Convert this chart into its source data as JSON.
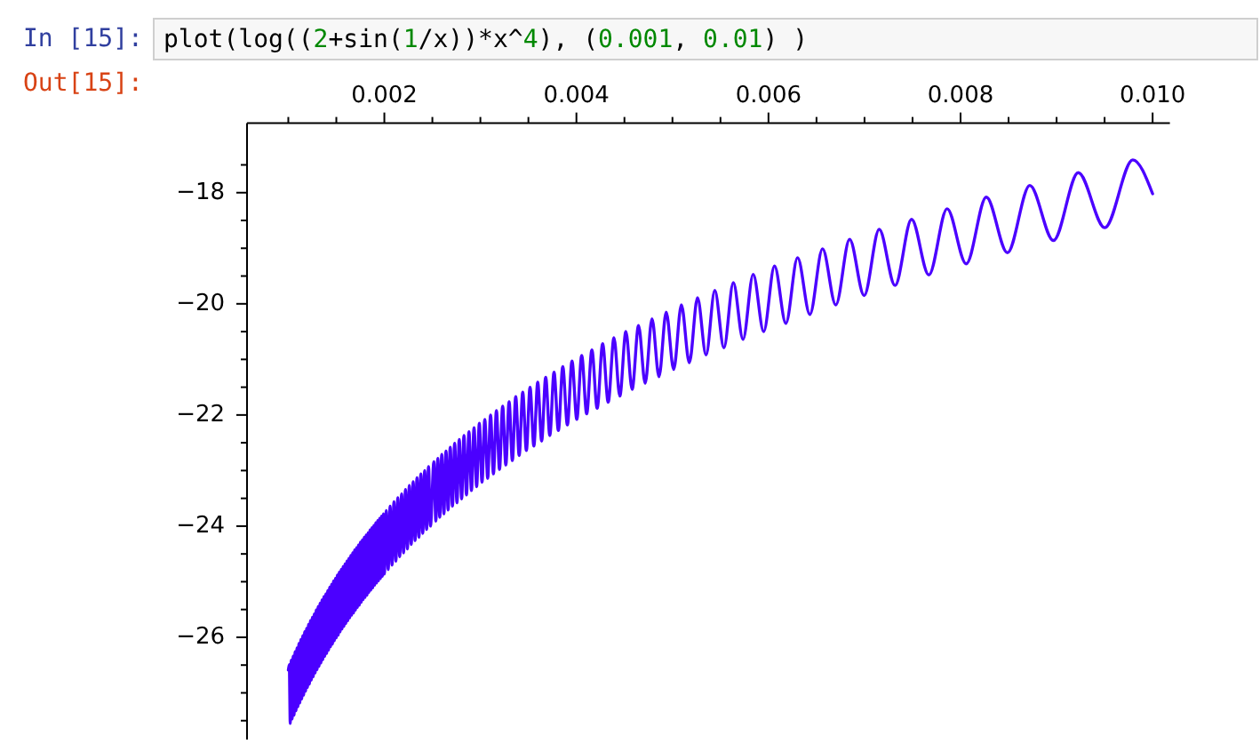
{
  "chart_data": {
    "type": "line",
    "color": "#4b00ff",
    "annotations": [
      "In [15]:",
      "plot(log((2+sin(1/x))*x^4), (0.001, 0.01) )",
      "Out[15]:"
    ],
    "xlim": [
      0.00057,
      0.01018
    ],
    "ylim": [
      -27.84,
      -16.75
    ],
    "xticks": [
      {
        "value": 0.001,
        "label": null
      },
      {
        "value": 0.0015,
        "label": null
      },
      0.002,
      {
        "value": 0.0025,
        "label": null
      },
      {
        "value": 0.003,
        "label": null
      },
      {
        "value": 0.0035,
        "label": null
      },
      0.004,
      {
        "value": 0.0045,
        "label": null
      },
      {
        "value": 0.005,
        "label": null
      },
      {
        "value": 0.0055,
        "label": null
      },
      0.006,
      {
        "value": 0.0065,
        "label": null
      },
      {
        "value": 0.007,
        "label": null
      },
      {
        "value": 0.0075,
        "label": null
      },
      0.008,
      {
        "value": 0.0085,
        "label": null
      },
      {
        "value": 0.009,
        "label": null
      },
      {
        "value": 0.0095,
        "label": null
      },
      {
        "value": 0.01,
        "label": "0.010"
      }
    ],
    "yticks": [
      {
        "value": -27.5,
        "label": null
      },
      {
        "value": -27,
        "label": null
      },
      {
        "value": -26.5,
        "label": null
      },
      {
        "value": -26,
        "label": "−26"
      },
      {
        "value": -25.5,
        "label": null
      },
      {
        "value": -25,
        "label": null
      },
      {
        "value": -24.5,
        "label": null
      },
      {
        "value": -24,
        "label": "−24"
      },
      {
        "value": -23.5,
        "label": null
      },
      {
        "value": -23,
        "label": null
      },
      {
        "value": -22.5,
        "label": null
      },
      {
        "value": -22,
        "label": "−22"
      },
      {
        "value": -21.5,
        "label": null
      },
      {
        "value": -21,
        "label": null
      },
      {
        "value": -20.5,
        "label": null
      },
      {
        "value": -20,
        "label": "−20"
      },
      {
        "value": -19.5,
        "label": null
      },
      {
        "value": -19,
        "label": null
      },
      {
        "value": -18.5,
        "label": null
      },
      {
        "value": -18,
        "label": "−18"
      },
      {
        "value": -17.5,
        "label": null
      }
    ],
    "x": [
      0.001,
      0.00101,
      0.00102,
      0.00103,
      0.00104,
      0.00105,
      0.00106,
      0.00107,
      0.00108,
      0.00109,
      0.0011,
      0.00111,
      0.00112,
      0.00113,
      0.00114,
      0.00115,
      0.00116,
      0.00117,
      0.00118,
      0.00119,
      0.0012,
      0.00121,
      0.00122,
      0.00123,
      0.00124,
      0.00125,
      0.00126,
      0.00127,
      0.00128,
      0.00129,
      0.0013,
      0.00131,
      0.00132,
      0.00133,
      0.00134,
      0.00135,
      0.00136,
      0.00137,
      0.00138,
      0.00139,
      0.0014,
      0.00141,
      0.00142,
      0.00143,
      0.00144,
      0.00145,
      0.00146,
      0.00147,
      0.00148,
      0.00149,
      0.0015,
      0.00151,
      0.00152,
      0.00153,
      0.00154,
      0.00155,
      0.00156,
      0.00157,
      0.00158,
      0.00159,
      0.0016,
      0.00161,
      0.00162,
      0.00163,
      0.00164,
      0.00165,
      0.00166,
      0.00167,
      0.00168,
      0.00169,
      0.0017,
      0.00171,
      0.00172,
      0.00173,
      0.00174,
      0.00175,
      0.00176,
      0.00177,
      0.00178,
      0.00179,
      0.0018,
      0.00181,
      0.00182,
      0.00183,
      0.00184,
      0.00185,
      0.00186,
      0.00187,
      0.00188,
      0.00189,
      0.0019,
      0.00191,
      0.00192,
      0.00193,
      0.00194,
      0.00195,
      0.00196,
      0.00197,
      0.00198,
      0.00199,
      0.002,
      0.00202,
      0.00204,
      0.00206,
      0.00208,
      0.0021,
      0.00212,
      0.00214,
      0.00216,
      0.00218,
      0.0022,
      0.00222,
      0.00224,
      0.00226,
      0.00228,
      0.0023,
      0.00232,
      0.00234,
      0.00236,
      0.00238,
      0.0024,
      0.00242,
      0.00244,
      0.00246,
      0.00248,
      0.002516,
      0.002536,
      0.002557,
      0.002577,
      0.002598,
      0.00262,
      0.002642,
      0.002664,
      0.002686,
      0.002709,
      0.002732,
      0.002756,
      0.00278,
      0.002805,
      0.002829,
      0.002855,
      0.002881,
      0.002907,
      0.002934,
      0.002961,
      0.002989,
      0.003017,
      0.003046,
      0.003076,
      0.003106,
      0.003136,
      0.003167,
      0.003199,
      0.003232,
      0.003265,
      0.003299,
      0.003333,
      0.003368,
      0.003404,
      0.003441,
      0.003479,
      0.003517,
      0.003557,
      0.003597,
      0.003638,
      0.00368,
      0.003723,
      0.003767,
      0.003812,
      0.003858,
      0.003906,
      0.003954,
      0.004004,
      0.004055,
      0.004107,
      0.004161,
      0.004216,
      0.004273,
      0.004331,
      0.004391,
      0.004452,
      0.004515,
      0.00458,
      0.004647,
      0.004716,
      0.004787,
      0.00486,
      0.004935,
      0.005013,
      0.005093,
      0.005176,
      0.005261,
      0.00535,
      0.005441,
      0.005536,
      0.005634,
      0.005735,
      0.005841,
      0.00595,
      0.006063,
      0.006181,
      0.006303,
      0.006431,
      0.006563,
      0.006701,
      0.006845,
      0.006996,
      0.007153,
      0.007318,
      0.00749,
      0.00767,
      0.00786,
      0.008059,
      0.008268,
      0.008488,
      0.008721,
      0.008967,
      0.009226,
      0.009502,
      0.009794,
      0.01
    ],
    "values": [
      -26.59,
      -26.49,
      -27.55,
      -26.41,
      -27.47,
      -26.34,
      -27.4,
      -26.26,
      -27.32,
      -26.19,
      -27.25,
      -26.11,
      -27.18,
      -26.04,
      -27.11,
      -25.97,
      -27.04,
      -25.9,
      -26.97,
      -25.84,
      -26.9,
      -25.77,
      -26.84,
      -25.7,
      -26.77,
      -25.64,
      -26.71,
      -25.58,
      -26.64,
      -25.51,
      -26.58,
      -25.45,
      -26.52,
      -25.39,
      -26.46,
      -25.33,
      -26.4,
      -25.27,
      -26.34,
      -25.22,
      -26.29,
      -25.16,
      -26.23,
      -25.1,
      -26.17,
      -25.05,
      -26.12,
      -24.99,
      -26.06,
      -24.94,
      -26.01,
      -24.88,
      -25.96,
      -24.83,
      -25.9,
      -24.78,
      -25.85,
      -24.73,
      -25.8,
      -24.68,
      -25.75,
      -24.63,
      -25.7,
      -24.58,
      -25.65,
      -24.53,
      -25.6,
      -24.48,
      -25.56,
      -24.43,
      -25.51,
      -24.39,
      -25.46,
      -24.34,
      -25.42,
      -24.29,
      -25.37,
      -24.25,
      -25.32,
      -24.2,
      -25.28,
      -24.16,
      -25.24,
      -24.12,
      -25.19,
      -24.07,
      -25.15,
      -24.03,
      -25.11,
      -23.99,
      -25.06,
      -23.94,
      -25.02,
      -23.9,
      -24.98,
      -23.86,
      -24.94,
      -23.82,
      -24.9,
      -23.78,
      -24.86,
      -23.72,
      -24.78,
      -23.64,
      -24.7,
      -23.56,
      -24.63,
      -23.49,
      -24.55,
      -23.42,
      -24.48,
      -23.34,
      -24.41,
      -23.27,
      -24.33,
      -23.2,
      -24.26,
      -23.13,
      -24.2,
      -23.06,
      -24.13,
      -23.0,
      -24.06,
      -22.93,
      -24.0,
      -22.84,
      -23.91,
      -22.78,
      -23.84,
      -22.71,
      -23.78,
      -22.65,
      -23.71,
      -22.58,
      -23.64,
      -22.51,
      -23.58,
      -22.44,
      -23.51,
      -22.37,
      -23.44,
      -22.3,
      -23.36,
      -22.23,
      -23.29,
      -22.15,
      -23.21,
      -22.08,
      -23.14,
      -22.0,
      -23.06,
      -21.92,
      -22.98,
      -21.84,
      -22.9,
      -21.76,
      -22.82,
      -21.67,
      -22.73,
      -21.59,
      -22.64,
      -21.5,
      -22.56,
      -21.41,
      -22.47,
      -21.32,
      -22.37,
      -21.23,
      -22.28,
      -21.13,
      -22.18,
      -21.03,
      -22.08,
      -20.93,
      -21.98,
      -20.83,
      -21.88,
      -20.72,
      -21.77,
      -20.61,
      -21.66,
      -20.5,
      -21.54,
      -20.39,
      -21.43,
      -20.27,
      -21.31,
      -20.15,
      -21.18,
      -20.02,
      -21.06,
      -19.89,
      -20.92,
      -19.76,
      -20.79,
      -19.62,
      -20.64,
      -19.47,
      -20.5,
      -19.32,
      -20.35,
      -19.17,
      -20.19,
      -19.01,
      -20.02,
      -18.84,
      -19.85,
      -18.66,
      -19.67,
      -18.48,
      -19.48,
      -18.29,
      -19.28,
      -18.08,
      -19.08,
      -17.87,
      -18.86,
      -17.64,
      -18.63,
      -17.41,
      -18.02
    ]
  }
}
